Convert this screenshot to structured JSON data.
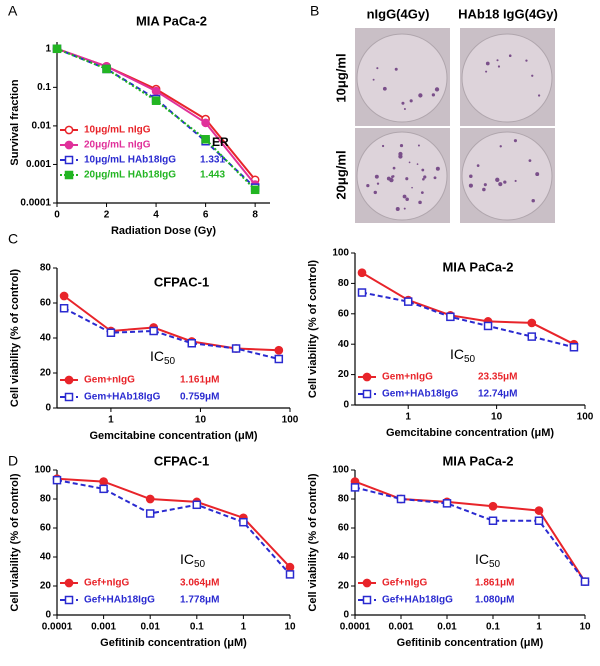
{
  "panel_labels": [
    "A",
    "B",
    "C",
    "D"
  ],
  "panel_b": {
    "columns": [
      "nIgG(4Gy)",
      "HAb18 IgG(4Gy)"
    ],
    "rows": [
      "10μg/ml",
      "20μg/ml"
    ]
  },
  "chart_data": [
    {
      "type": "line",
      "title": "MIA PaCa-2",
      "x_label": "Radiation Dose (Gy)",
      "y_label": "Survival fraction",
      "x": [
        0,
        2,
        4,
        6,
        8
      ],
      "xlim": [
        0,
        8.6
      ],
      "xticks": [
        0,
        2,
        4,
        6,
        8
      ],
      "ylim": [
        0.0001,
        1.5
      ],
      "yticks": [
        0.0001,
        0.001,
        0.01,
        0.1,
        1
      ],
      "ylog": true,
      "legend": "lower left",
      "legend_header": "ER",
      "series": [
        {
          "name": "10μg/mL nIgG",
          "color": "#e8242a",
          "marker": "circle-open",
          "dash": "solid",
          "values": [
            1,
            0.35,
            0.09,
            0.015,
            0.0004
          ]
        },
        {
          "name": "20μg/mL nIgG",
          "color": "#e0309a",
          "marker": "circle",
          "dash": "solid",
          "values": [
            1,
            0.35,
            0.08,
            0.012,
            0.0003
          ]
        },
        {
          "name": "10μg/mL HAb18IgG",
          "color": "#2a2ad0",
          "marker": "square-open",
          "dash": "dashed",
          "values": [
            1,
            0.3,
            0.05,
            0.004,
            0.00025
          ],
          "er": 1.331
        },
        {
          "name": "20μg/mL HAb18IgG",
          "color": "#22b522",
          "marker": "square",
          "dash": "dotted",
          "values": [
            1,
            0.3,
            0.045,
            0.0045,
            0.00022
          ],
          "er": 1.443
        }
      ]
    },
    {
      "type": "line",
      "title": "CFPAC-1",
      "x_label": "Gemcitabine concentration (μM)",
      "y_label": "Cell viability (% of control)",
      "x": [
        0.3,
        1,
        3,
        8,
        25,
        75
      ],
      "xlim": [
        0.25,
        100
      ],
      "xticks": [
        1,
        10,
        100
      ],
      "xlog": true,
      "ylim": [
        0,
        80
      ],
      "yticks": [
        0,
        20,
        40,
        60,
        80
      ],
      "legend": "lower left",
      "legend_header": "IC",
      "legend_header_sub": "50",
      "series": [
        {
          "name": "Gem+nIgG",
          "color": "#e8242a",
          "marker": "circle",
          "dash": "solid",
          "values": [
            64,
            44,
            46,
            38,
            34,
            33
          ],
          "ic50": "1.161μM"
        },
        {
          "name": "Gem+HAb18IgG",
          "color": "#2a2ad0",
          "marker": "square-open",
          "dash": "dashed",
          "values": [
            57,
            43,
            44,
            37,
            34,
            28
          ],
          "ic50": "0.759μM"
        }
      ]
    },
    {
      "type": "line",
      "title": "MIA PaCa-2",
      "x_label": "Gemcitabine concentration (μM)",
      "y_label": "Cell viability (% of control)",
      "x": [
        0.3,
        1,
        3,
        8,
        25,
        75
      ],
      "xlim": [
        0.25,
        100
      ],
      "xticks": [
        1,
        10,
        100
      ],
      "xlog": true,
      "ylim": [
        0,
        100
      ],
      "yticks": [
        0,
        20,
        40,
        60,
        80,
        100
      ],
      "legend": "lower left",
      "legend_header": "IC",
      "legend_header_sub": "50",
      "series": [
        {
          "name": "Gem+nIgG",
          "color": "#e8242a",
          "marker": "circle",
          "dash": "solid",
          "values": [
            87,
            69,
            59,
            55,
            54,
            40
          ],
          "ic50": "23.35μM"
        },
        {
          "name": "Gem+HAb18IgG",
          "color": "#2a2ad0",
          "marker": "square-open",
          "dash": "dashed",
          "values": [
            74,
            68,
            58,
            52,
            45,
            38
          ],
          "ic50": "12.74μM"
        }
      ]
    },
    {
      "type": "line",
      "title": "CFPAC-1",
      "x_label": "Gefitinib concentration (μM)",
      "y_label": "Cell viability (% of control)",
      "x": [
        0.0001,
        0.001,
        0.01,
        0.1,
        1,
        10
      ],
      "xlim": [
        0.0001,
        10
      ],
      "xticks": [
        0.0001,
        0.001,
        0.01,
        0.1,
        1,
        10
      ],
      "xlog": true,
      "ylim": [
        0,
        100
      ],
      "yticks": [
        0,
        20,
        40,
        60,
        80,
        100
      ],
      "legend": "lower left",
      "legend_header": "IC",
      "legend_header_sub": "50",
      "series": [
        {
          "name": "Gef+nIgG",
          "color": "#e8242a",
          "marker": "circle",
          "dash": "solid",
          "values": [
            94,
            92,
            80,
            78,
            67,
            33
          ],
          "ic50": "3.064μM"
        },
        {
          "name": "Gef+HAb18IgG",
          "color": "#2a2ad0",
          "marker": "square-open",
          "dash": "dashed",
          "values": [
            93,
            87,
            70,
            76,
            64,
            28
          ],
          "ic50": "1.778μM"
        }
      ]
    },
    {
      "type": "line",
      "title": "MIA PaCa-2",
      "x_label": "Gefitinib concentration (μM)",
      "y_label": "Cell viability (% of control)",
      "x": [
        0.0001,
        0.001,
        0.01,
        0.1,
        1,
        10
      ],
      "xlim": [
        0.0001,
        10
      ],
      "xticks": [
        0.0001,
        0.001,
        0.01,
        0.1,
        1,
        10
      ],
      "xlog": true,
      "ylim": [
        0,
        100
      ],
      "yticks": [
        0,
        20,
        40,
        60,
        80,
        100
      ],
      "legend": "lower left",
      "legend_header": "IC",
      "legend_header_sub": "50",
      "series": [
        {
          "name": "Gef+nIgG",
          "color": "#e8242a",
          "marker": "circle",
          "dash": "solid",
          "values": [
            92,
            80,
            78,
            75,
            72,
            23
          ],
          "ic50": "1.861μM"
        },
        {
          "name": "Gef+HAb18IgG",
          "color": "#2a2ad0",
          "marker": "square-open",
          "dash": "dashed",
          "values": [
            88,
            80,
            77,
            65,
            65,
            23
          ],
          "ic50": "1.080μM"
        }
      ]
    }
  ]
}
